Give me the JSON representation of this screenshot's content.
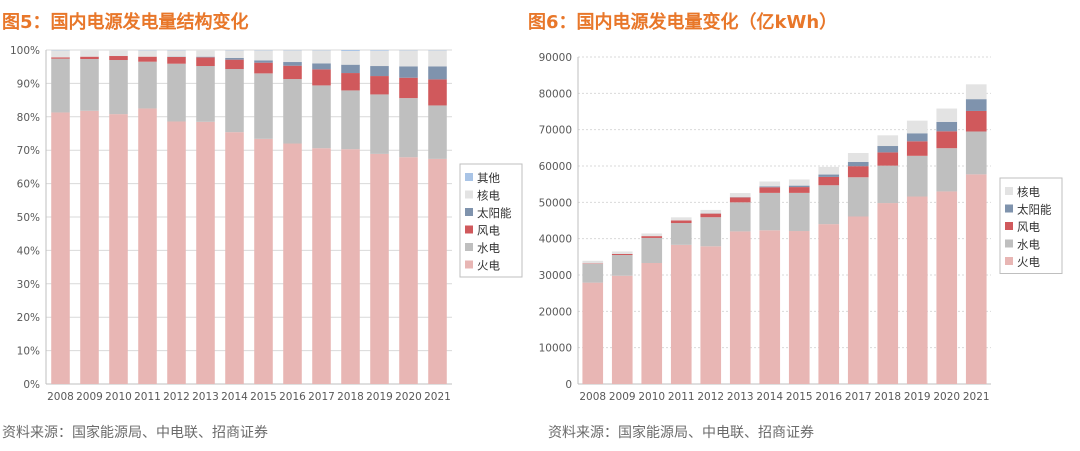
{
  "source_text": "资料来源：国家能源局、中电联、招商证券",
  "colors": {
    "title": "#e8772a",
    "火电": "#e8b6b4",
    "水电": "#bfbfbf",
    "风电": "#d0595c",
    "太阳能": "#7f93ad",
    "核电": "#e3e3e3",
    "其他": "#a9c4e6"
  },
  "chart_data": [
    {
      "type": "bar",
      "stacked": true,
      "title": "图5：国内电源发电量结构变化",
      "categories": [
        "2008",
        "2009",
        "2010",
        "2011",
        "2012",
        "2013",
        "2014",
        "2015",
        "2016",
        "2017",
        "2018",
        "2019",
        "2020",
        "2021"
      ],
      "ylim": [
        0,
        100
      ],
      "yticks": [
        "0%",
        "10%",
        "20%",
        "30%",
        "40%",
        "50%",
        "60%",
        "70%",
        "80%",
        "90%",
        "100%"
      ],
      "grid": true,
      "legend_position": "right",
      "legend": [
        "其他",
        "核电",
        "太阳能",
        "风电",
        "水电",
        "火电"
      ],
      "series": [
        {
          "name": "火电",
          "values": [
            81.3,
            81.8,
            80.8,
            82.5,
            78.6,
            78.5,
            75.4,
            73.4,
            72.0,
            70.6,
            70.3,
            68.9,
            67.9,
            67.4
          ]
        },
        {
          "name": "水电",
          "values": [
            16.1,
            15.5,
            16.2,
            14.0,
            17.3,
            16.7,
            18.9,
            19.6,
            19.3,
            18.8,
            17.6,
            17.8,
            17.7,
            16.0
          ]
        },
        {
          "name": "风电",
          "values": [
            0.4,
            0.7,
            1.2,
            1.5,
            2.0,
            2.6,
            2.8,
            3.2,
            4.0,
            4.8,
            5.2,
            5.5,
            6.1,
            7.8
          ]
        },
        {
          "name": "太阳能",
          "values": [
            0.0,
            0.0,
            0.0,
            0.0,
            0.1,
            0.2,
            0.5,
            0.7,
            1.1,
            1.8,
            2.5,
            3.0,
            3.4,
            3.9
          ]
        },
        {
          "name": "核电",
          "values": [
            2.1,
            2.0,
            1.8,
            1.9,
            1.9,
            2.0,
            2.3,
            3.0,
            3.5,
            3.9,
            4.1,
            4.6,
            4.8,
            4.8
          ]
        },
        {
          "name": "其他",
          "values": [
            0.1,
            0.0,
            0.0,
            0.1,
            0.1,
            0.0,
            0.1,
            0.1,
            0.1,
            0.1,
            0.3,
            0.2,
            0.1,
            0.1
          ]
        }
      ]
    },
    {
      "type": "bar",
      "stacked": true,
      "title": "图6：国内电源发电量变化（亿kWh）",
      "categories": [
        "2008",
        "2009",
        "2010",
        "2011",
        "2012",
        "2013",
        "2014",
        "2015",
        "2016",
        "2017",
        "2018",
        "2019",
        "2020",
        "2021"
      ],
      "ylim": [
        0,
        90000
      ],
      "yticks": [
        "0",
        "10000",
        "20000",
        "30000",
        "40000",
        "50000",
        "60000",
        "70000",
        "80000",
        "90000"
      ],
      "grid": true,
      "legend_position": "right",
      "legend": [
        "核电",
        "太阳能",
        "风电",
        "水电",
        "火电"
      ],
      "series": [
        {
          "name": "火电",
          "values": [
            27900,
            29800,
            33300,
            38300,
            37900,
            42000,
            42300,
            42100,
            44000,
            46100,
            49800,
            51600,
            53000,
            57700
          ]
        },
        {
          "name": "水电",
          "values": [
            5200,
            5700,
            6900,
            6000,
            8000,
            8000,
            10300,
            10500,
            10700,
            10800,
            10300,
            11200,
            11900,
            11800
          ]
        },
        {
          "name": "风电",
          "values": [
            130,
            280,
            500,
            700,
            1000,
            1350,
            1550,
            1600,
            2300,
            3050,
            3650,
            4000,
            4650,
            5650
          ]
        },
        {
          "name": "太阳能",
          "values": [
            0,
            0,
            0,
            0,
            30,
            80,
            250,
            400,
            650,
            1150,
            1750,
            2200,
            2600,
            3250
          ]
        },
        {
          "name": "核电",
          "values": [
            680,
            700,
            740,
            880,
            980,
            1120,
            1330,
            1700,
            2100,
            2480,
            2940,
            3480,
            3660,
            4080
          ]
        }
      ]
    }
  ]
}
